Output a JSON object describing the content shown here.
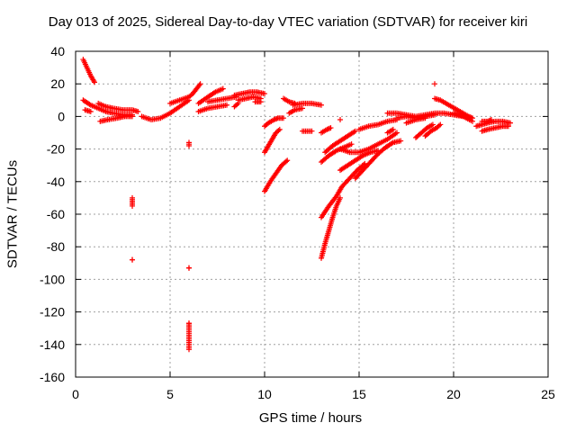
{
  "chart_data": {
    "type": "scatter",
    "title": "Day 013 of 2025, Sidereal Day-to-day VTEC variation (SDTVAR) for receiver kiri",
    "xlabel": "GPS time / hours",
    "ylabel": "SDTVAR / TECUs",
    "xlim": [
      0,
      25
    ],
    "ylim": [
      -160,
      40
    ],
    "xticks": [
      "0",
      "5",
      "10",
      "15",
      "20",
      "25"
    ],
    "yticks": [
      "40",
      "20",
      "0",
      "-20",
      "-40",
      "-60",
      "-80",
      "-100",
      "-120",
      "-140",
      "-160"
    ],
    "grid": true,
    "marker": "plus",
    "color": "#ff0000",
    "segments": [
      [
        [
          0.4,
          35
        ],
        [
          0.6,
          30
        ],
        [
          0.8,
          25
        ],
        [
          1.0,
          21
        ]
      ],
      [
        [
          0.4,
          10
        ],
        [
          0.8,
          7
        ],
        [
          1.2,
          5
        ],
        [
          1.6,
          3
        ],
        [
          2.0,
          2
        ],
        [
          2.5,
          1
        ],
        [
          3.0,
          1
        ]
      ],
      [
        [
          0.5,
          4
        ],
        [
          0.8,
          3
        ]
      ],
      [
        [
          1.2,
          8
        ],
        [
          1.6,
          6
        ],
        [
          2.0,
          5
        ],
        [
          2.5,
          4
        ],
        [
          3.0,
          4
        ],
        [
          3.3,
          3
        ]
      ],
      [
        [
          1.3,
          -3
        ],
        [
          1.7,
          -2
        ],
        [
          2.2,
          -1
        ],
        [
          2.6,
          0
        ],
        [
          3.0,
          0
        ]
      ],
      [
        [
          3.5,
          0
        ],
        [
          4.0,
          -2
        ],
        [
          4.5,
          -1
        ],
        [
          5.0,
          2
        ],
        [
          5.5,
          6
        ],
        [
          6.0,
          10
        ]
      ],
      [
        [
          5.0,
          8
        ],
        [
          5.5,
          10
        ],
        [
          6.0,
          12
        ],
        [
          6.2,
          14
        ],
        [
          6.4,
          17
        ],
        [
          6.6,
          20
        ]
      ],
      [
        [
          6.5,
          3
        ],
        [
          7.0,
          5
        ],
        [
          7.5,
          6
        ],
        [
          8.0,
          7
        ]
      ],
      [
        [
          6.5,
          8
        ],
        [
          7.0,
          12
        ],
        [
          7.4,
          15
        ],
        [
          7.8,
          17
        ]
      ],
      [
        [
          7.0,
          9
        ],
        [
          7.5,
          10
        ],
        [
          8.0,
          11
        ],
        [
          8.5,
          12
        ]
      ],
      [
        [
          8.4,
          13
        ],
        [
          8.8,
          14
        ],
        [
          9.2,
          15
        ],
        [
          9.6,
          15
        ],
        [
          10.0,
          14
        ]
      ],
      [
        [
          8.6,
          10
        ],
        [
          9.0,
          11
        ],
        [
          9.4,
          12
        ],
        [
          9.8,
          11
        ]
      ],
      [
        [
          8.4,
          6
        ],
        [
          8.6,
          8
        ]
      ],
      [
        [
          9.5,
          9
        ],
        [
          9.8,
          9
        ]
      ],
      [
        [
          10.0,
          -6
        ],
        [
          10.2,
          -4
        ],
        [
          10.5,
          -2
        ],
        [
          10.7,
          -1
        ],
        [
          11.0,
          -1
        ]
      ],
      [
        [
          10.0,
          -22
        ],
        [
          10.2,
          -18
        ],
        [
          10.4,
          -14
        ],
        [
          10.6,
          -10
        ],
        [
          10.8,
          -8
        ]
      ],
      [
        [
          10.0,
          -46
        ],
        [
          10.3,
          -40
        ],
        [
          10.6,
          -35
        ],
        [
          10.9,
          -30
        ],
        [
          11.2,
          -27
        ]
      ],
      [
        [
          11.0,
          11
        ],
        [
          11.3,
          9
        ],
        [
          11.6,
          8
        ]
      ],
      [
        [
          11.5,
          7
        ],
        [
          12.0,
          8
        ],
        [
          12.5,
          8
        ],
        [
          13.0,
          7
        ]
      ],
      [
        [
          11.3,
          2
        ],
        [
          11.6,
          4
        ],
        [
          12.0,
          5
        ]
      ],
      [
        [
          12.0,
          -9
        ],
        [
          12.5,
          -9
        ]
      ],
      [
        [
          13.0,
          -62
        ],
        [
          13.4,
          -55
        ],
        [
          13.8,
          -49
        ],
        [
          14.1,
          -43
        ],
        [
          14.5,
          -38
        ],
        [
          14.9,
          -33
        ],
        [
          15.3,
          -29
        ]
      ],
      [
        [
          13.0,
          -87
        ],
        [
          13.2,
          -78
        ],
        [
          13.4,
          -70
        ],
        [
          13.6,
          -62
        ],
        [
          13.8,
          -55
        ],
        [
          14.0,
          -50
        ]
      ],
      [
        [
          13.0,
          -28
        ],
        [
          13.4,
          -24
        ],
        [
          13.8,
          -21
        ],
        [
          14.2,
          -19
        ],
        [
          14.6,
          -17
        ]
      ],
      [
        [
          13.2,
          -22
        ],
        [
          13.6,
          -18
        ],
        [
          14.0,
          -15
        ],
        [
          14.4,
          -12
        ],
        [
          14.8,
          -9
        ]
      ],
      [
        [
          13.0,
          -10
        ],
        [
          13.3,
          -8
        ],
        [
          13.5,
          -7
        ]
      ],
      [
        [
          14.0,
          -2
        ]
      ],
      [
        [
          14.0,
          -33
        ],
        [
          14.4,
          -30
        ],
        [
          14.8,
          -27
        ],
        [
          15.2,
          -24
        ],
        [
          15.6,
          -22
        ],
        [
          16.0,
          -21
        ]
      ],
      [
        [
          14.0,
          -20
        ],
        [
          14.5,
          -22
        ],
        [
          15.0,
          -22
        ],
        [
          15.5,
          -20
        ],
        [
          16.0,
          -17
        ],
        [
          16.5,
          -14
        ],
        [
          17.0,
          -10
        ]
      ],
      [
        [
          15.0,
          -8
        ],
        [
          15.5,
          -6
        ],
        [
          16.0,
          -5
        ],
        [
          16.5,
          -3
        ],
        [
          17.0,
          -2
        ]
      ],
      [
        [
          14.8,
          -38
        ],
        [
          15.2,
          -33
        ],
        [
          15.6,
          -28
        ],
        [
          16.0,
          -23
        ],
        [
          16.4,
          -19
        ],
        [
          16.8,
          -16
        ],
        [
          17.2,
          -15
        ]
      ],
      [
        [
          16.5,
          -10
        ],
        [
          16.8,
          -8
        ]
      ],
      [
        [
          16.5,
          2
        ],
        [
          17.0,
          2
        ],
        [
          17.5,
          1
        ],
        [
          18.0,
          0
        ],
        [
          18.5,
          1
        ],
        [
          19.0,
          2
        ],
        [
          19.5,
          2
        ],
        [
          20.0,
          1
        ],
        [
          20.5,
          0
        ],
        [
          21.0,
          -3
        ]
      ],
      [
        [
          17.0,
          -1
        ],
        [
          17.5,
          0
        ],
        [
          18.0,
          -1
        ],
        [
          18.5,
          0
        ],
        [
          19.0,
          1
        ]
      ],
      [
        [
          17.5,
          -4
        ],
        [
          18.0,
          -2
        ],
        [
          18.5,
          -1
        ]
      ],
      [
        [
          18.0,
          -13
        ],
        [
          18.3,
          -10
        ],
        [
          18.6,
          -7
        ],
        [
          18.9,
          -5
        ]
      ],
      [
        [
          18.5,
          -12
        ],
        [
          18.8,
          -9
        ],
        [
          19.1,
          -7
        ],
        [
          19.3,
          -5
        ]
      ],
      [
        [
          19.0,
          20
        ]
      ],
      [
        [
          19.0,
          11
        ],
        [
          19.3,
          10
        ],
        [
          19.6,
          8
        ],
        [
          19.9,
          6
        ],
        [
          20.2,
          4
        ],
        [
          20.5,
          2
        ],
        [
          20.8,
          0
        ],
        [
          21.0,
          -1
        ]
      ],
      [
        [
          20.0,
          2
        ],
        [
          20.3,
          1
        ],
        [
          20.6,
          0
        ]
      ],
      [
        [
          21.2,
          -6
        ],
        [
          21.5,
          -5
        ],
        [
          21.8,
          -4
        ],
        [
          22.2,
          -3
        ],
        [
          22.6,
          -3
        ],
        [
          23.0,
          -4
        ]
      ],
      [
        [
          21.5,
          -9
        ],
        [
          21.8,
          -8
        ],
        [
          22.2,
          -7
        ],
        [
          22.6,
          -6
        ],
        [
          22.9,
          -6
        ]
      ],
      [
        [
          21.5,
          -3
        ],
        [
          21.8,
          -3
        ],
        [
          22.0,
          -2
        ]
      ],
      [
        [
          3.0,
          -50
        ],
        [
          3.0,
          -55
        ],
        [
          3.0,
          -88
        ]
      ],
      [
        [
          6.0,
          -16
        ],
        [
          6.0,
          -18
        ],
        [
          6.0,
          -93
        ],
        [
          6.0,
          -127
        ],
        [
          6.0,
          -129
        ],
        [
          6.0,
          -143
        ]
      ]
    ]
  }
}
